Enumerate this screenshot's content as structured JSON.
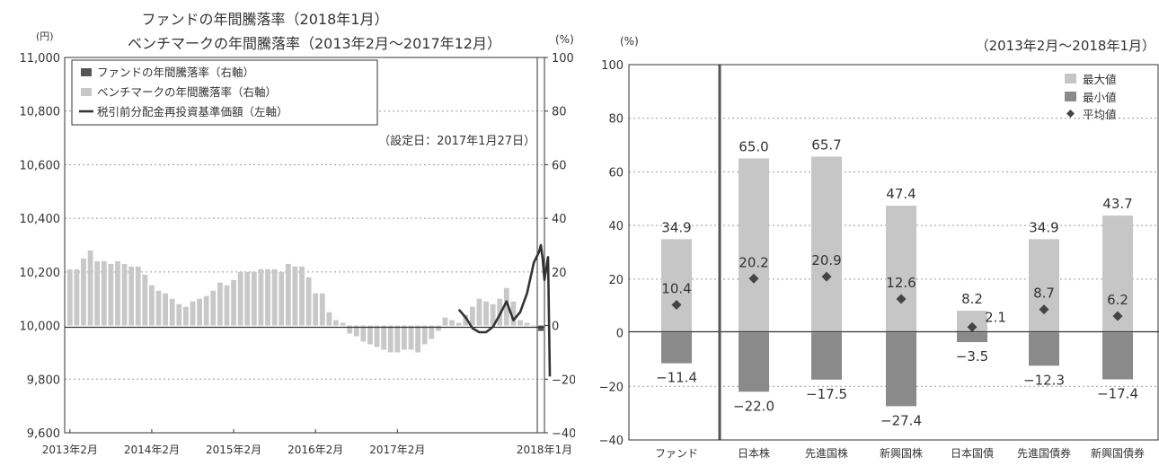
{
  "chart_data": [
    {
      "type": "bar",
      "title_lines": [
        "ファンドの年間騰落率（2018年1月）",
        "ベンチマークの年間騰落率（2013年2月～2017年12月）"
      ],
      "left_unit": "(円)",
      "right_unit": "(%)",
      "setup_date": "（設定日：2017年1月27日）",
      "legend": [
        "ファンドの年間騰落率（右軸）",
        "ベンチマークの年間騰落率（右軸）",
        "税引前分配金再投資基準価額（左軸）"
      ],
      "left_axis": {
        "range": [
          9600,
          11000
        ],
        "ticks": [
          9600,
          9800,
          10000,
          10200,
          10400,
          10600,
          10800,
          11000
        ],
        "tick_labels": [
          "9,600",
          "9,800",
          "10,000",
          "10,200",
          "10,400",
          "10,600",
          "10,800",
          "11,000"
        ]
      },
      "right_axis": {
        "range": [
          -40,
          100
        ],
        "ticks": [
          -40,
          -20,
          0,
          20,
          40,
          60,
          80,
          100
        ]
      },
      "x_tick_labels": [
        "2013年2月",
        "2014年2月",
        "2015年2月",
        "2016年2月",
        "2017年2月",
        "2018年1月"
      ],
      "grid": true,
      "legend_position": "top-left",
      "benchmark_series": {
        "name": "ベンチマークの年間騰落率（右軸）",
        "color": "#c8c8c8",
        "values": [
          21,
          21,
          25,
          28,
          24,
          24,
          23,
          24,
          23,
          22,
          22,
          19,
          15,
          13,
          12,
          10,
          8,
          7,
          9,
          10,
          11,
          13,
          16,
          15,
          17,
          20,
          20,
          20,
          21,
          21,
          21,
          20,
          23,
          22,
          22,
          18,
          12,
          12,
          5,
          2,
          1,
          -3,
          -4,
          -6,
          -7,
          -8,
          -9,
          -10,
          -10,
          -9,
          -9,
          -10,
          -7,
          -5,
          -2,
          3,
          2,
          1,
          4,
          7,
          10,
          9,
          8,
          10,
          14,
          9,
          2,
          1,
          0
        ]
      },
      "fund_series": {
        "name": "ファンドの年間騰落率（右軸）",
        "color": "#555555",
        "values": [
          -2
        ]
      },
      "nav_series": {
        "name": "税引前分配金再投資基準価額（左軸）",
        "color": "#333333",
        "start_index": 57,
        "values": [
          10060,
          10030,
          9990,
          9975,
          9975,
          9995,
          10040,
          10090,
          10020,
          10050,
          10120,
          10235,
          10275,
          10300,
          10250,
          10170,
          10215,
          10255,
          9810
        ]
      }
    },
    {
      "type": "bar",
      "unit": "(%)",
      "period": "（2013年2月～2018年1月）",
      "categories": [
        "ファンド",
        "日本株",
        "先進国株",
        "新興国株",
        "日本国債",
        "先進国債券",
        "新興国債券"
      ],
      "legend": [
        "最大値",
        "最小値",
        "平均値"
      ],
      "legend_position": "top-right",
      "y_axis": {
        "range": [
          -40,
          100
        ],
        "ticks": [
          -40,
          -20,
          0,
          20,
          40,
          60,
          80,
          100
        ]
      },
      "grid": true,
      "colors": {
        "max": "#c6c6c6",
        "min": "#8a8a8a",
        "mean": "#444444"
      },
      "series": [
        {
          "name": "最大値",
          "values": [
            34.9,
            65.0,
            65.7,
            47.4,
            8.2,
            34.9,
            43.7
          ],
          "labels": [
            "34.9",
            "65.0",
            "65.7",
            "47.4",
            "8.2",
            "34.9",
            "43.7"
          ]
        },
        {
          "name": "最小値",
          "values": [
            -11.4,
            -22.0,
            -17.5,
            -27.4,
            -3.5,
            -12.3,
            -17.4
          ],
          "labels": [
            "−11.4",
            "−22.0",
            "−17.5",
            "−27.4",
            "−3.5",
            "−12.3",
            "−17.4"
          ]
        },
        {
          "name": "平均値",
          "values": [
            10.4,
            20.2,
            20.9,
            12.6,
            2.1,
            8.7,
            6.2
          ],
          "labels": [
            "10.4",
            "20.2",
            "20.9",
            "12.6",
            "2.1",
            "8.7",
            "6.2"
          ]
        }
      ]
    }
  ]
}
